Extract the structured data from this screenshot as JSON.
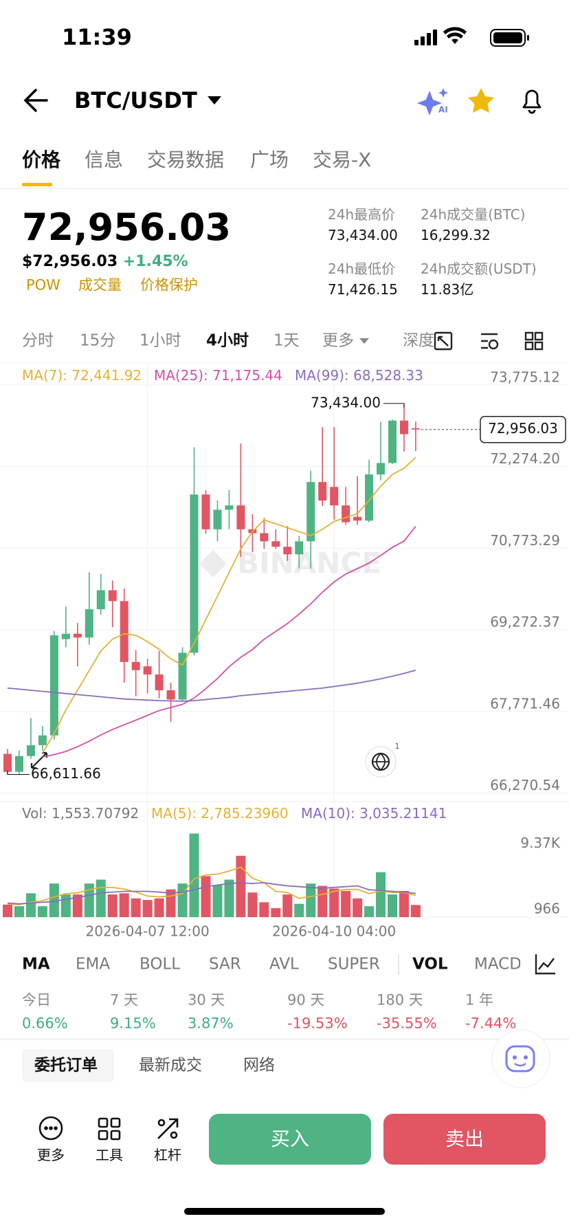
{
  "status_bar": {
    "time": "11:39"
  },
  "header": {
    "pair": "BTC/USDT"
  },
  "tabs": {
    "items": [
      "价格",
      "信息",
      "交易数据",
      "广场",
      "交易-X"
    ],
    "active": 0
  },
  "ticker": {
    "last": "72,956.03",
    "usd": "$72,956.03",
    "change": "+1.45%",
    "tags": [
      "POW",
      "成交量",
      "价格保护"
    ]
  },
  "stats": [
    {
      "label": "24h最高价",
      "value": "73,434.00"
    },
    {
      "label": "24h成交量(BTC)",
      "value": "16,299.32"
    },
    {
      "label": "24h最低价",
      "value": "71,426.15"
    },
    {
      "label": "24h成交额(USDT)",
      "value": "11.83亿"
    }
  ],
  "intervals": {
    "items": [
      "分时",
      "15分",
      "1小时",
      "4小时",
      "1天",
      "更多",
      "深度"
    ],
    "active": 3
  },
  "chart": {
    "type": "candlestick",
    "watermark": "BINANCE",
    "badge": "1",
    "up_color": "#4fb383",
    "down_color": "#e25563",
    "ylim": [
      66112,
      74179
    ],
    "yticks": [
      {
        "value": 73775.12,
        "label": "73,775.12"
      },
      {
        "value": 72274.2,
        "label": "72,274.20"
      },
      {
        "value": 70773.29,
        "label": "70,773.29"
      },
      {
        "value": 69272.37,
        "label": "69,272.37"
      },
      {
        "value": 67771.46,
        "label": "67,771.46"
      },
      {
        "value": 66270.54,
        "label": "66,270.54"
      }
    ],
    "xticks": [
      {
        "value": 12,
        "label": "2026-04-07 12:00"
      },
      {
        "value": 28,
        "label": "2026-04-10 04:00"
      }
    ],
    "last_price": {
      "value": 72956.03,
      "label": "72,956.03"
    },
    "high": {
      "value": 73434,
      "label": "73,434.00"
    },
    "low": {
      "value": 66611.66,
      "label": "66,611.66"
    },
    "candles": [
      {
        "o": 66990,
        "h": 67080,
        "l": 66611.66,
        "c": 66660
      },
      {
        "o": 66660,
        "h": 67050,
        "l": 66620,
        "c": 66950
      },
      {
        "o": 66950,
        "h": 67650,
        "l": 66900,
        "c": 67150
      },
      {
        "o": 67150,
        "h": 67500,
        "l": 67050,
        "c": 67330
      },
      {
        "o": 67330,
        "h": 69250,
        "l": 67250,
        "c": 69170
      },
      {
        "o": 69100,
        "h": 69700,
        "l": 68950,
        "c": 69200
      },
      {
        "o": 69200,
        "h": 69400,
        "l": 68600,
        "c": 69130
      },
      {
        "o": 69130,
        "h": 70330,
        "l": 69000,
        "c": 69650
      },
      {
        "o": 69650,
        "h": 70300,
        "l": 69550,
        "c": 70000
      },
      {
        "o": 70000,
        "h": 70180,
        "l": 69320,
        "c": 69800
      },
      {
        "o": 69800,
        "h": 70030,
        "l": 68300,
        "c": 68680
      },
      {
        "o": 68680,
        "h": 68900,
        "l": 68050,
        "c": 68530
      },
      {
        "o": 68600,
        "h": 68740,
        "l": 68100,
        "c": 68450
      },
      {
        "o": 68450,
        "h": 68880,
        "l": 68010,
        "c": 68160
      },
      {
        "o": 68160,
        "h": 68300,
        "l": 67580,
        "c": 67990
      },
      {
        "o": 67990,
        "h": 68950,
        "l": 67970,
        "c": 68850
      },
      {
        "o": 68850,
        "h": 72630,
        "l": 68800,
        "c": 71760
      },
      {
        "o": 71760,
        "h": 71840,
        "l": 71040,
        "c": 71120
      },
      {
        "o": 71120,
        "h": 71650,
        "l": 70900,
        "c": 71480
      },
      {
        "o": 71480,
        "h": 71840,
        "l": 71120,
        "c": 71560
      },
      {
        "o": 71560,
        "h": 72700,
        "l": 70610,
        "c": 71120
      },
      {
        "o": 71120,
        "h": 71400,
        "l": 70700,
        "c": 71050
      },
      {
        "o": 71050,
        "h": 71330,
        "l": 70760,
        "c": 70900
      },
      {
        "o": 70900,
        "h": 71120,
        "l": 70760,
        "c": 70800
      },
      {
        "o": 70800,
        "h": 71180,
        "l": 70540,
        "c": 70660
      },
      {
        "o": 70660,
        "h": 71000,
        "l": 70400,
        "c": 70900
      },
      {
        "o": 70900,
        "h": 72200,
        "l": 70400,
        "c": 71990
      },
      {
        "o": 71990,
        "h": 73000,
        "l": 71550,
        "c": 71650
      },
      {
        "o": 71900,
        "h": 73000,
        "l": 71300,
        "c": 71560
      },
      {
        "o": 71560,
        "h": 71900,
        "l": 71200,
        "c": 71250
      },
      {
        "o": 71350,
        "h": 72100,
        "l": 71200,
        "c": 71280
      },
      {
        "o": 71280,
        "h": 72400,
        "l": 71250,
        "c": 72130
      },
      {
        "o": 72130,
        "h": 73100,
        "l": 72020,
        "c": 72340
      },
      {
        "o": 72340,
        "h": 73140,
        "l": 72320,
        "c": 73120
      },
      {
        "o": 73120,
        "h": 73434,
        "l": 72550,
        "c": 72870
      },
      {
        "o": 72980,
        "h": 73100,
        "l": 72560,
        "c": 72956.03
      }
    ],
    "ma_lines": [
      {
        "label": "MA(7): 72,441.92",
        "color": "#e3b233",
        "values": [
          null,
          null,
          null,
          67006,
          67367,
          67800,
          68161,
          68522,
          68883,
          69100,
          69200,
          69170,
          69055,
          68911,
          68738,
          68623,
          69027,
          69460,
          69893,
          70326,
          70759,
          71077,
          71293,
          71221,
          71149,
          71077,
          71004,
          71120,
          71264,
          71336,
          71408,
          71654,
          71913,
          72130,
          72245,
          72441.92
        ]
      },
      {
        "label": "MA(25): 71,175.44",
        "color": "#d44fa8",
        "values": [
          null,
          null,
          null,
          66934,
          66977,
          67035,
          67122,
          67223,
          67338,
          67439,
          67526,
          67612,
          67699,
          67786,
          67843,
          67901,
          68017,
          68190,
          68378,
          68594,
          68767,
          68911,
          69099,
          69243,
          69388,
          69561,
          69748,
          69965,
          70153,
          70297,
          70398,
          70499,
          70643,
          70788,
          70903,
          71175.44
        ]
      },
      {
        "label": "MA(99): 68,528.33",
        "color": "#8a6bc0",
        "values": [
          68200,
          68180,
          68160,
          68140,
          68120,
          68100,
          68080,
          68060,
          68040,
          68020,
          68000,
          67990,
          67980,
          67970,
          67965,
          67960,
          67970,
          67990,
          68010,
          68030,
          68060,
          68080,
          68100,
          68120,
          68140,
          68160,
          68180,
          68200,
          68230,
          68260,
          68290,
          68330,
          68370,
          68420,
          68470,
          68528.33
        ]
      }
    ],
    "volume": {
      "legend": "Vol: 1,553.70792",
      "ylim": [
        0,
        11000
      ],
      "yticks": [
        {
          "value": 9370,
          "label": "9.37K"
        },
        966
      ],
      "values": [
        1600,
        1400,
        3050,
        1400,
        4300,
        2900,
        2900,
        4300,
        4800,
        2900,
        3050,
        2400,
        2200,
        2400,
        3550,
        4300,
        10700,
        5250,
        4100,
        4800,
        7850,
        3150,
        1900,
        1150,
        2900,
        1700,
        4300,
        4000,
        3650,
        3350,
        2400,
        1400,
        5750,
        2900,
        3350,
        1553.70792
      ],
      "ma_lines": [
        {
          "label": "MA(5): 2,785.23960",
          "color": "#e3b233",
          "values": [
            1700,
            1600,
            1900,
            2100,
            2600,
            3000,
            3100,
            3500,
            3800,
            3800,
            3600,
            3200,
            2700,
            2600,
            2700,
            3000,
            4900,
            5400,
            5500,
            5900,
            6400,
            5000,
            4400,
            3300,
            3150,
            2400,
            2650,
            2900,
            3300,
            3550,
            3550,
            3000,
            3350,
            3150,
            3150,
            2785.2396
          ]
        },
        {
          "label": "MA(10): 3,035.21141",
          "color": "#8a6bc0",
          "values": [
            1800,
            1700,
            1800,
            1900,
            2000,
            2300,
            2500,
            2800,
            3100,
            3200,
            3300,
            3300,
            3300,
            3200,
            3100,
            3200,
            3500,
            3900,
            4100,
            4300,
            4400,
            4300,
            4400,
            4200,
            4000,
            3900,
            3800,
            3700,
            3800,
            3900,
            4000,
            3500,
            3400,
            3300,
            3200,
            3035.21141
          ]
        }
      ]
    }
  },
  "indicators": {
    "items": [
      "MA",
      "EMA",
      "BOLL",
      "SAR",
      "AVL",
      "SUPER",
      "VOL",
      "MACD"
    ],
    "bold": [
      0,
      6
    ]
  },
  "performance": [
    {
      "label": "今日",
      "value": "0.66%",
      "color": "#3fae7e"
    },
    {
      "label": "7 天",
      "value": "9.15%",
      "color": "#3fae7e"
    },
    {
      "label": "30 天",
      "value": "3.87%",
      "color": "#3fae7e"
    },
    {
      "label": "90 天",
      "value": "-19.53%",
      "color": "#e2515f"
    },
    {
      "label": "180 天",
      "value": "-35.55%",
      "color": "#e2515f"
    },
    {
      "label": "1 年",
      "value": "-7.44%",
      "color": "#e2515f"
    }
  ],
  "order_tabs": {
    "items": [
      "委托订单",
      "最新成交",
      "网络"
    ],
    "active": 0
  },
  "toolbar": [
    "更多",
    "工具",
    "杠杆"
  ],
  "buttons": {
    "buy": "买入",
    "sell": "卖出"
  }
}
